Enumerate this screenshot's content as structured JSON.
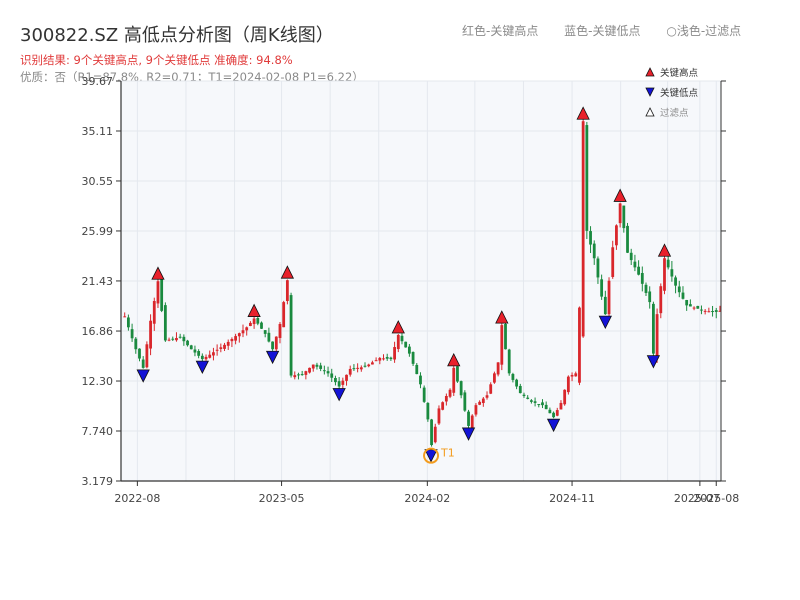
{
  "header": {
    "title": "300822.SZ 高低点分析图（周K线图）",
    "subtitle": "识别结果: 9个关键高点, 9个关键低点  准确度: 94.8%",
    "status": "优质：否（R1=87.8%, R2=0.71；T1=2024-02-08 P1=6.22）"
  },
  "top_legend": {
    "red": "红色-关键高点",
    "blue": "蓝色-关键低点",
    "light": "○浅色-过滤点"
  },
  "colors": {
    "up": "#d9262b",
    "down": "#1a8a3f",
    "high_marker": "#e8212b",
    "low_marker": "#1313d6",
    "t1_ring": "#f39c1e",
    "plot_bg": "#f6f8fb",
    "grid": "#e4e8ee"
  },
  "chart_data": {
    "type": "candlestick",
    "x_axis": {
      "min": "2022-07",
      "max": "2025-08",
      "ticks": [
        "2022-08",
        "2023-05",
        "2024-02",
        "2024-11",
        "2025-08",
        "2025-07"
      ]
    },
    "y_axis": {
      "min": 3.179,
      "max": 39.67,
      "ticks": [
        "3.179",
        "7.740",
        "12.30",
        "16.86",
        "21.43",
        "25.99",
        "30.55",
        "35.11",
        "39.67"
      ]
    },
    "grid": true,
    "legend": {
      "placement": "top-right",
      "entries": [
        {
          "label": "关键高点",
          "marker": "triangle-up",
          "color": "#e8212b"
        },
        {
          "label": "关键低点",
          "marker": "triangle-down",
          "color": "#1313d6"
        },
        {
          "label": "过滤点",
          "marker": "triangle-up-hollow",
          "color": "#555555"
        }
      ]
    },
    "anchors": [
      [
        "2022-07-08",
        18.2
      ],
      [
        "2022-07-29",
        15.2
      ],
      [
        "2022-08-12",
        13.5
      ],
      [
        "2022-08-26",
        17.8
      ],
      [
        "2022-09-09",
        21.4
      ],
      [
        "2022-09-23",
        16.0
      ],
      [
        "2022-10-21",
        16.3
      ],
      [
        "2022-11-11",
        15.2
      ],
      [
        "2022-12-02",
        14.3
      ],
      [
        "2022-12-16",
        14.7
      ],
      [
        "2023-01-13",
        15.6
      ],
      [
        "2023-02-03",
        16.4
      ],
      [
        "2023-02-24",
        17.2
      ],
      [
        "2023-03-10",
        18.0
      ],
      [
        "2023-03-31",
        16.6
      ],
      [
        "2023-04-14",
        15.2
      ],
      [
        "2023-04-28",
        17.5
      ],
      [
        "2023-05-12",
        21.5
      ],
      [
        "2023-05-19",
        12.8
      ],
      [
        "2023-06-09",
        12.9
      ],
      [
        "2023-06-30",
        13.8
      ],
      [
        "2023-07-28",
        13.0
      ],
      [
        "2023-08-18",
        11.8
      ],
      [
        "2023-09-08",
        13.4
      ],
      [
        "2023-10-06",
        13.6
      ],
      [
        "2023-11-03",
        14.4
      ],
      [
        "2023-11-24",
        14.3
      ],
      [
        "2023-12-08",
        16.5
      ],
      [
        "2023-12-29",
        14.8
      ],
      [
        "2024-01-19",
        12.0
      ],
      [
        "2024-02-02",
        8.8
      ],
      [
        "2024-02-08",
        6.22
      ],
      [
        "2024-02-23",
        9.8
      ],
      [
        "2024-03-15",
        11.5
      ],
      [
        "2024-03-22",
        13.5
      ],
      [
        "2024-04-05",
        11.0
      ],
      [
        "2024-04-19",
        8.2
      ],
      [
        "2024-05-03",
        10.1
      ],
      [
        "2024-05-24",
        11.0
      ],
      [
        "2024-06-14",
        14.0
      ],
      [
        "2024-06-21",
        17.4
      ],
      [
        "2024-07-05",
        13.0
      ],
      [
        "2024-07-26",
        11.2
      ],
      [
        "2024-08-16",
        10.4
      ],
      [
        "2024-09-06",
        10.1
      ],
      [
        "2024-09-27",
        9.0
      ],
      [
        "2024-10-11",
        10.3
      ],
      [
        "2024-10-25",
        12.7
      ],
      [
        "2024-11-08",
        13.0
      ],
      [
        "2024-11-15",
        19.0
      ],
      [
        "2024-11-22",
        36.0
      ],
      [
        "2024-11-29",
        26.0
      ],
      [
        "2024-12-13",
        23.5
      ],
      [
        "2024-12-27",
        20.0
      ],
      [
        "2025-01-03",
        18.4
      ],
      [
        "2025-01-17",
        24.5
      ],
      [
        "2025-01-24",
        26.5
      ],
      [
        "2025-01-31",
        28.5
      ],
      [
        "2025-02-14",
        24.0
      ],
      [
        "2025-03-07",
        22.0
      ],
      [
        "2025-03-28",
        19.5
      ],
      [
        "2025-04-04",
        14.8
      ],
      [
        "2025-04-11",
        18.4
      ],
      [
        "2025-04-25",
        23.5
      ],
      [
        "2025-05-16",
        21.0
      ],
      [
        "2025-06-06",
        19.2
      ],
      [
        "2025-07-11",
        18.7
      ],
      [
        "2025-08-01",
        18.6
      ],
      [
        "2025-08-08",
        18.7
      ]
    ],
    "key_highs": [
      {
        "date": "2022-09-09",
        "value": 21.4
      },
      {
        "date": "2023-03-10",
        "value": 18.0
      },
      {
        "date": "2023-05-12",
        "value": 21.5
      },
      {
        "date": "2023-12-08",
        "value": 16.5
      },
      {
        "date": "2024-03-22",
        "value": 13.5
      },
      {
        "date": "2024-06-21",
        "value": 17.4
      },
      {
        "date": "2024-11-22",
        "value": 36.0
      },
      {
        "date": "2025-01-31",
        "value": 28.5
      },
      {
        "date": "2025-04-25",
        "value": 23.5
      }
    ],
    "key_lows": [
      {
        "date": "2022-08-12",
        "value": 13.5
      },
      {
        "date": "2022-12-02",
        "value": 14.3
      },
      {
        "date": "2023-04-14",
        "value": 15.2
      },
      {
        "date": "2023-08-18",
        "value": 11.8
      },
      {
        "date": "2024-02-08",
        "value": 6.22
      },
      {
        "date": "2024-04-19",
        "value": 8.2
      },
      {
        "date": "2024-09-27",
        "value": 9.0
      },
      {
        "date": "2025-01-03",
        "value": 18.4
      },
      {
        "date": "2025-04-04",
        "value": 14.8
      }
    ],
    "t1": {
      "label": "T1",
      "date": "2024-02-08",
      "value": 6.22
    }
  }
}
